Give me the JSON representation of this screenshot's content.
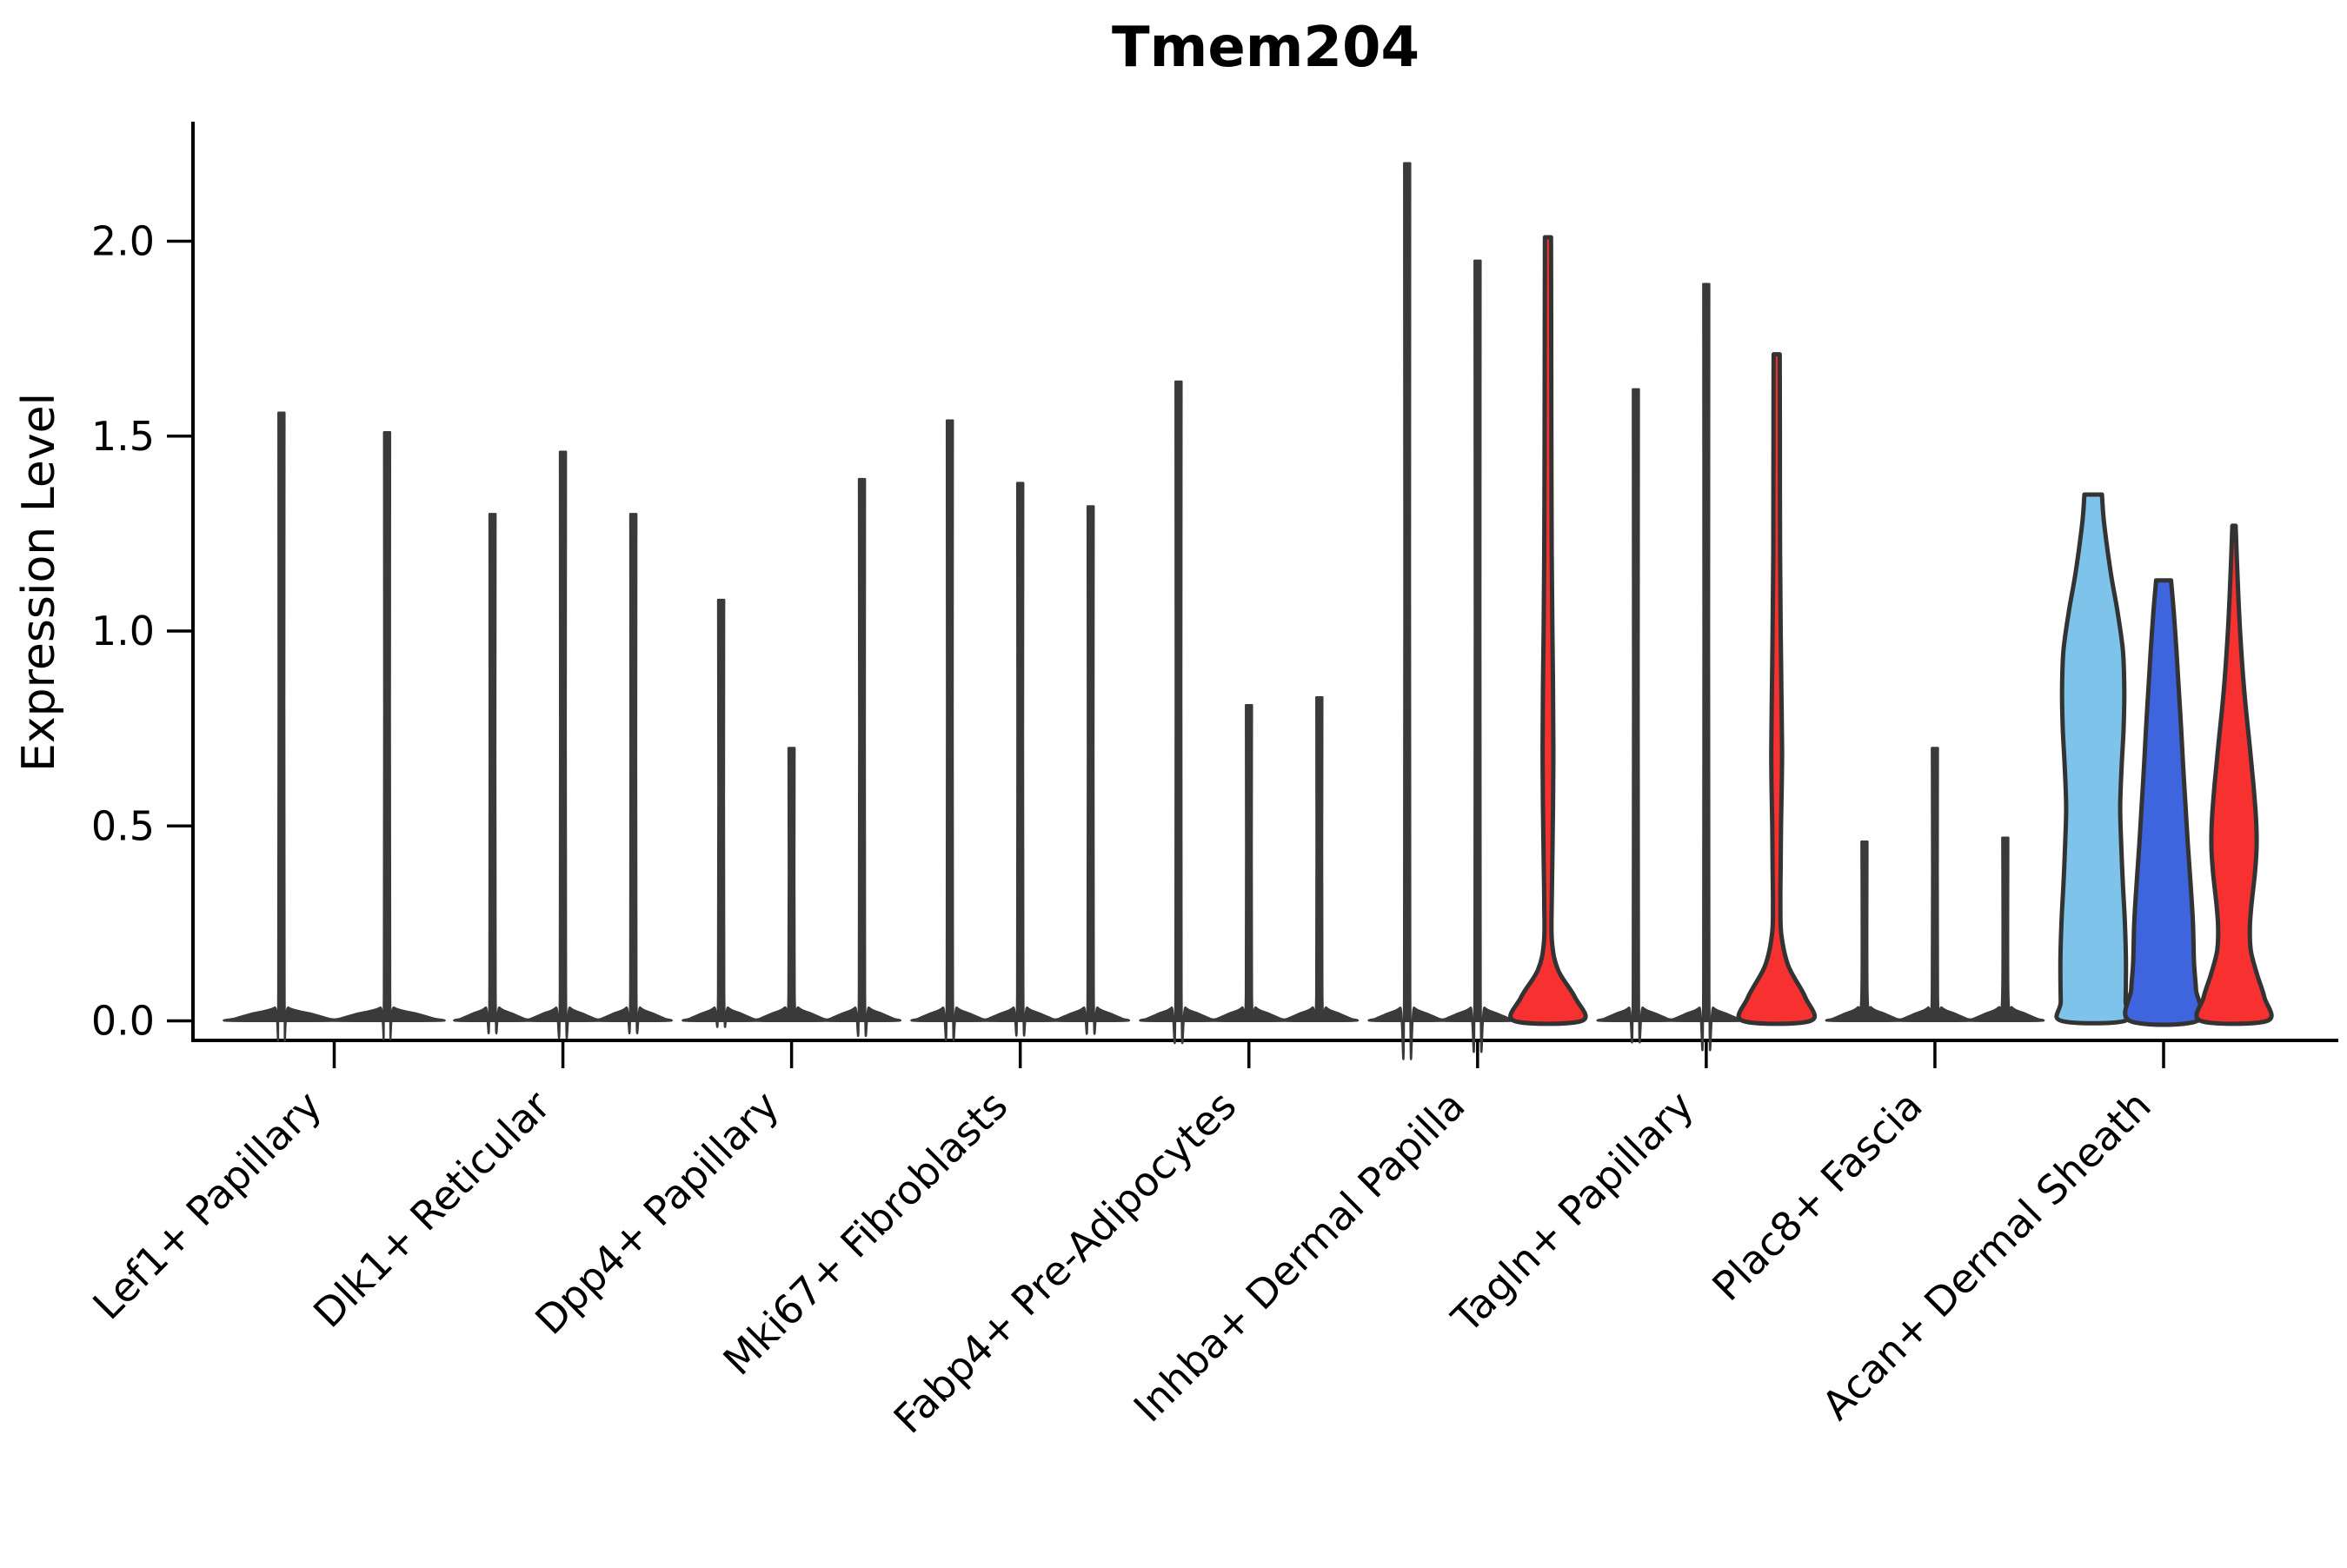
{
  "chart_data": {
    "type": "violin",
    "title": "Tmem204",
    "ylabel": "Expression Level",
    "xlabel": "",
    "ylim": [
      0,
      2.31
    ],
    "grid": false,
    "legend": "none",
    "y_ticks": [
      0.0,
      0.5,
      1.0,
      1.5,
      2.0
    ],
    "y_tick_labels": [
      "0.0",
      "0.5",
      "1.0",
      "1.5",
      "2.0"
    ],
    "categories": [
      "Lef1+ Papillary",
      "Dlk1+ Reticular",
      "Dpp4+ Papillary",
      "Mki67+ Fibroblasts",
      "Fabp4+ Pre-Adipocytes",
      "Inhba+ Dermal Papilla",
      "Tagln+ Papillary",
      "Plac8+ Fascia",
      "Acan+ Dermal Sheath"
    ],
    "groups": [
      {
        "category": "Lef1+ Papillary",
        "violins": [
          {
            "max": 1.56,
            "style": "spike",
            "fill": "#3A3A3A"
          },
          {
            "max": 1.51,
            "style": "spike",
            "fill": "#3A3A3A"
          }
        ]
      },
      {
        "category": "Dlk1+ Reticular",
        "violins": [
          {
            "max": 1.3,
            "style": "spike",
            "fill": "#3A3A3A"
          },
          {
            "max": 1.46,
            "style": "spike",
            "fill": "#3A3A3A"
          },
          {
            "max": 1.3,
            "style": "spike",
            "fill": "#3A3A3A"
          }
        ]
      },
      {
        "category": "Dpp4+ Papillary",
        "violins": [
          {
            "max": 1.08,
            "style": "spike",
            "fill": "#3A3A3A"
          },
          {
            "max": 0.7,
            "style": "spike",
            "fill": "#3A3A3A"
          },
          {
            "max": 1.39,
            "style": "spike",
            "fill": "#3A3A3A"
          }
        ]
      },
      {
        "category": "Mki67+ Fibroblasts",
        "violins": [
          {
            "max": 1.54,
            "style": "spike",
            "fill": "#3A3A3A"
          },
          {
            "max": 1.38,
            "style": "spike",
            "fill": "#3A3A3A"
          },
          {
            "max": 1.32,
            "style": "spike",
            "fill": "#3A3A3A"
          }
        ]
      },
      {
        "category": "Fabp4+ Pre-Adipocytes",
        "violins": [
          {
            "max": 1.64,
            "style": "spike",
            "fill": "#3A3A3A"
          },
          {
            "max": 0.81,
            "style": "spike",
            "fill": "#3A3A3A"
          },
          {
            "max": 0.83,
            "style": "spike",
            "fill": "#3A3A3A"
          }
        ]
      },
      {
        "category": "Inhba+ Dermal Papilla",
        "violins": [
          {
            "max": 2.2,
            "style": "spike",
            "fill": "#3A3A3A"
          },
          {
            "max": 1.95,
            "style": "spike",
            "fill": "#3A3A3A"
          },
          {
            "max": 2.01,
            "style": "shaped",
            "fill": "#F73030",
            "profile": "red_stem_inhba"
          }
        ]
      },
      {
        "category": "Tagln+ Papillary",
        "violins": [
          {
            "max": 1.62,
            "style": "spike",
            "fill": "#3A3A3A"
          },
          {
            "max": 1.89,
            "style": "spike",
            "fill": "#3A3A3A"
          },
          {
            "max": 1.71,
            "style": "shaped",
            "fill": "#F73030",
            "profile": "red_stem_tagln"
          }
        ]
      },
      {
        "category": "Plac8+ Fascia",
        "violins": [
          {
            "max": 0.46,
            "style": "spike",
            "fill": "#3A3A3A"
          },
          {
            "max": 0.7,
            "style": "spike",
            "fill": "#3A3A3A"
          },
          {
            "max": 0.47,
            "style": "spike",
            "fill": "#3A3A3A"
          }
        ]
      },
      {
        "category": "Acan+ Dermal Sheath",
        "violins": [
          {
            "max": 1.35,
            "style": "shaped",
            "fill": "#7EC4EA",
            "profile": "sky_acan"
          },
          {
            "max": 1.13,
            "style": "shaped",
            "fill": "#3E64DE",
            "profile": "royal_acan"
          },
          {
            "max": 1.27,
            "style": "shaped",
            "fill": "#F73030",
            "profile": "red_acan"
          }
        ]
      }
    ],
    "profiles": {
      "sky_acan": [
        [
          1.35,
          0.26
        ],
        [
          1.28,
          0.32
        ],
        [
          1.15,
          0.52
        ],
        [
          1.05,
          0.72
        ],
        [
          0.95,
          0.88
        ],
        [
          0.85,
          0.92
        ],
        [
          0.75,
          0.9
        ],
        [
          0.65,
          0.84
        ],
        [
          0.55,
          0.8
        ],
        [
          0.45,
          0.83
        ],
        [
          0.35,
          0.88
        ],
        [
          0.25,
          0.94
        ],
        [
          0.15,
          0.97
        ],
        [
          0.05,
          0.96
        ],
        [
          0,
          0.94
        ]
      ],
      "royal_acan": [
        [
          1.13,
          0.22
        ],
        [
          1.05,
          0.3
        ],
        [
          0.95,
          0.38
        ],
        [
          0.85,
          0.45
        ],
        [
          0.75,
          0.52
        ],
        [
          0.65,
          0.58
        ],
        [
          0.55,
          0.65
        ],
        [
          0.45,
          0.72
        ],
        [
          0.35,
          0.8
        ],
        [
          0.25,
          0.87
        ],
        [
          0.15,
          0.9
        ],
        [
          0.08,
          0.96
        ],
        [
          0,
          1.0
        ]
      ],
      "red_acan": [
        [
          1.27,
          0.05
        ],
        [
          1.15,
          0.1
        ],
        [
          1.0,
          0.18
        ],
        [
          0.85,
          0.3
        ],
        [
          0.7,
          0.47
        ],
        [
          0.6,
          0.58
        ],
        [
          0.52,
          0.65
        ],
        [
          0.45,
          0.67
        ],
        [
          0.38,
          0.62
        ],
        [
          0.3,
          0.52
        ],
        [
          0.24,
          0.47
        ],
        [
          0.18,
          0.5
        ],
        [
          0.12,
          0.68
        ],
        [
          0.06,
          0.9
        ],
        [
          0,
          0.98
        ]
      ],
      "red_stem_inhba": [
        [
          2.01,
          0.09
        ],
        [
          1.8,
          0.095
        ],
        [
          1.5,
          0.1
        ],
        [
          1.2,
          0.11
        ],
        [
          1.0,
          0.13
        ],
        [
          0.85,
          0.15
        ],
        [
          0.7,
          0.16
        ],
        [
          0.55,
          0.15
        ],
        [
          0.42,
          0.13
        ],
        [
          0.3,
          0.11
        ],
        [
          0.2,
          0.12
        ],
        [
          0.13,
          0.3
        ],
        [
          0.06,
          0.8
        ],
        [
          0,
          1.0
        ]
      ],
      "red_stem_tagln": [
        [
          1.71,
          0.09
        ],
        [
          1.5,
          0.095
        ],
        [
          1.2,
          0.1
        ],
        [
          1.0,
          0.12
        ],
        [
          0.85,
          0.14
        ],
        [
          0.7,
          0.16
        ],
        [
          0.6,
          0.15
        ],
        [
          0.5,
          0.13
        ],
        [
          0.4,
          0.12
        ],
        [
          0.3,
          0.11
        ],
        [
          0.22,
          0.14
        ],
        [
          0.14,
          0.35
        ],
        [
          0.06,
          0.85
        ],
        [
          0,
          1.0
        ]
      ]
    },
    "style": {
      "outline_color": "#333333",
      "spike_color": "#3A3A3A",
      "axis_color": "#000000",
      "background": "#FFFFFF",
      "fill_sky_blue": "#7EC4EA",
      "fill_royal_blue": "#3E64DE",
      "fill_red": "#F73030"
    }
  }
}
